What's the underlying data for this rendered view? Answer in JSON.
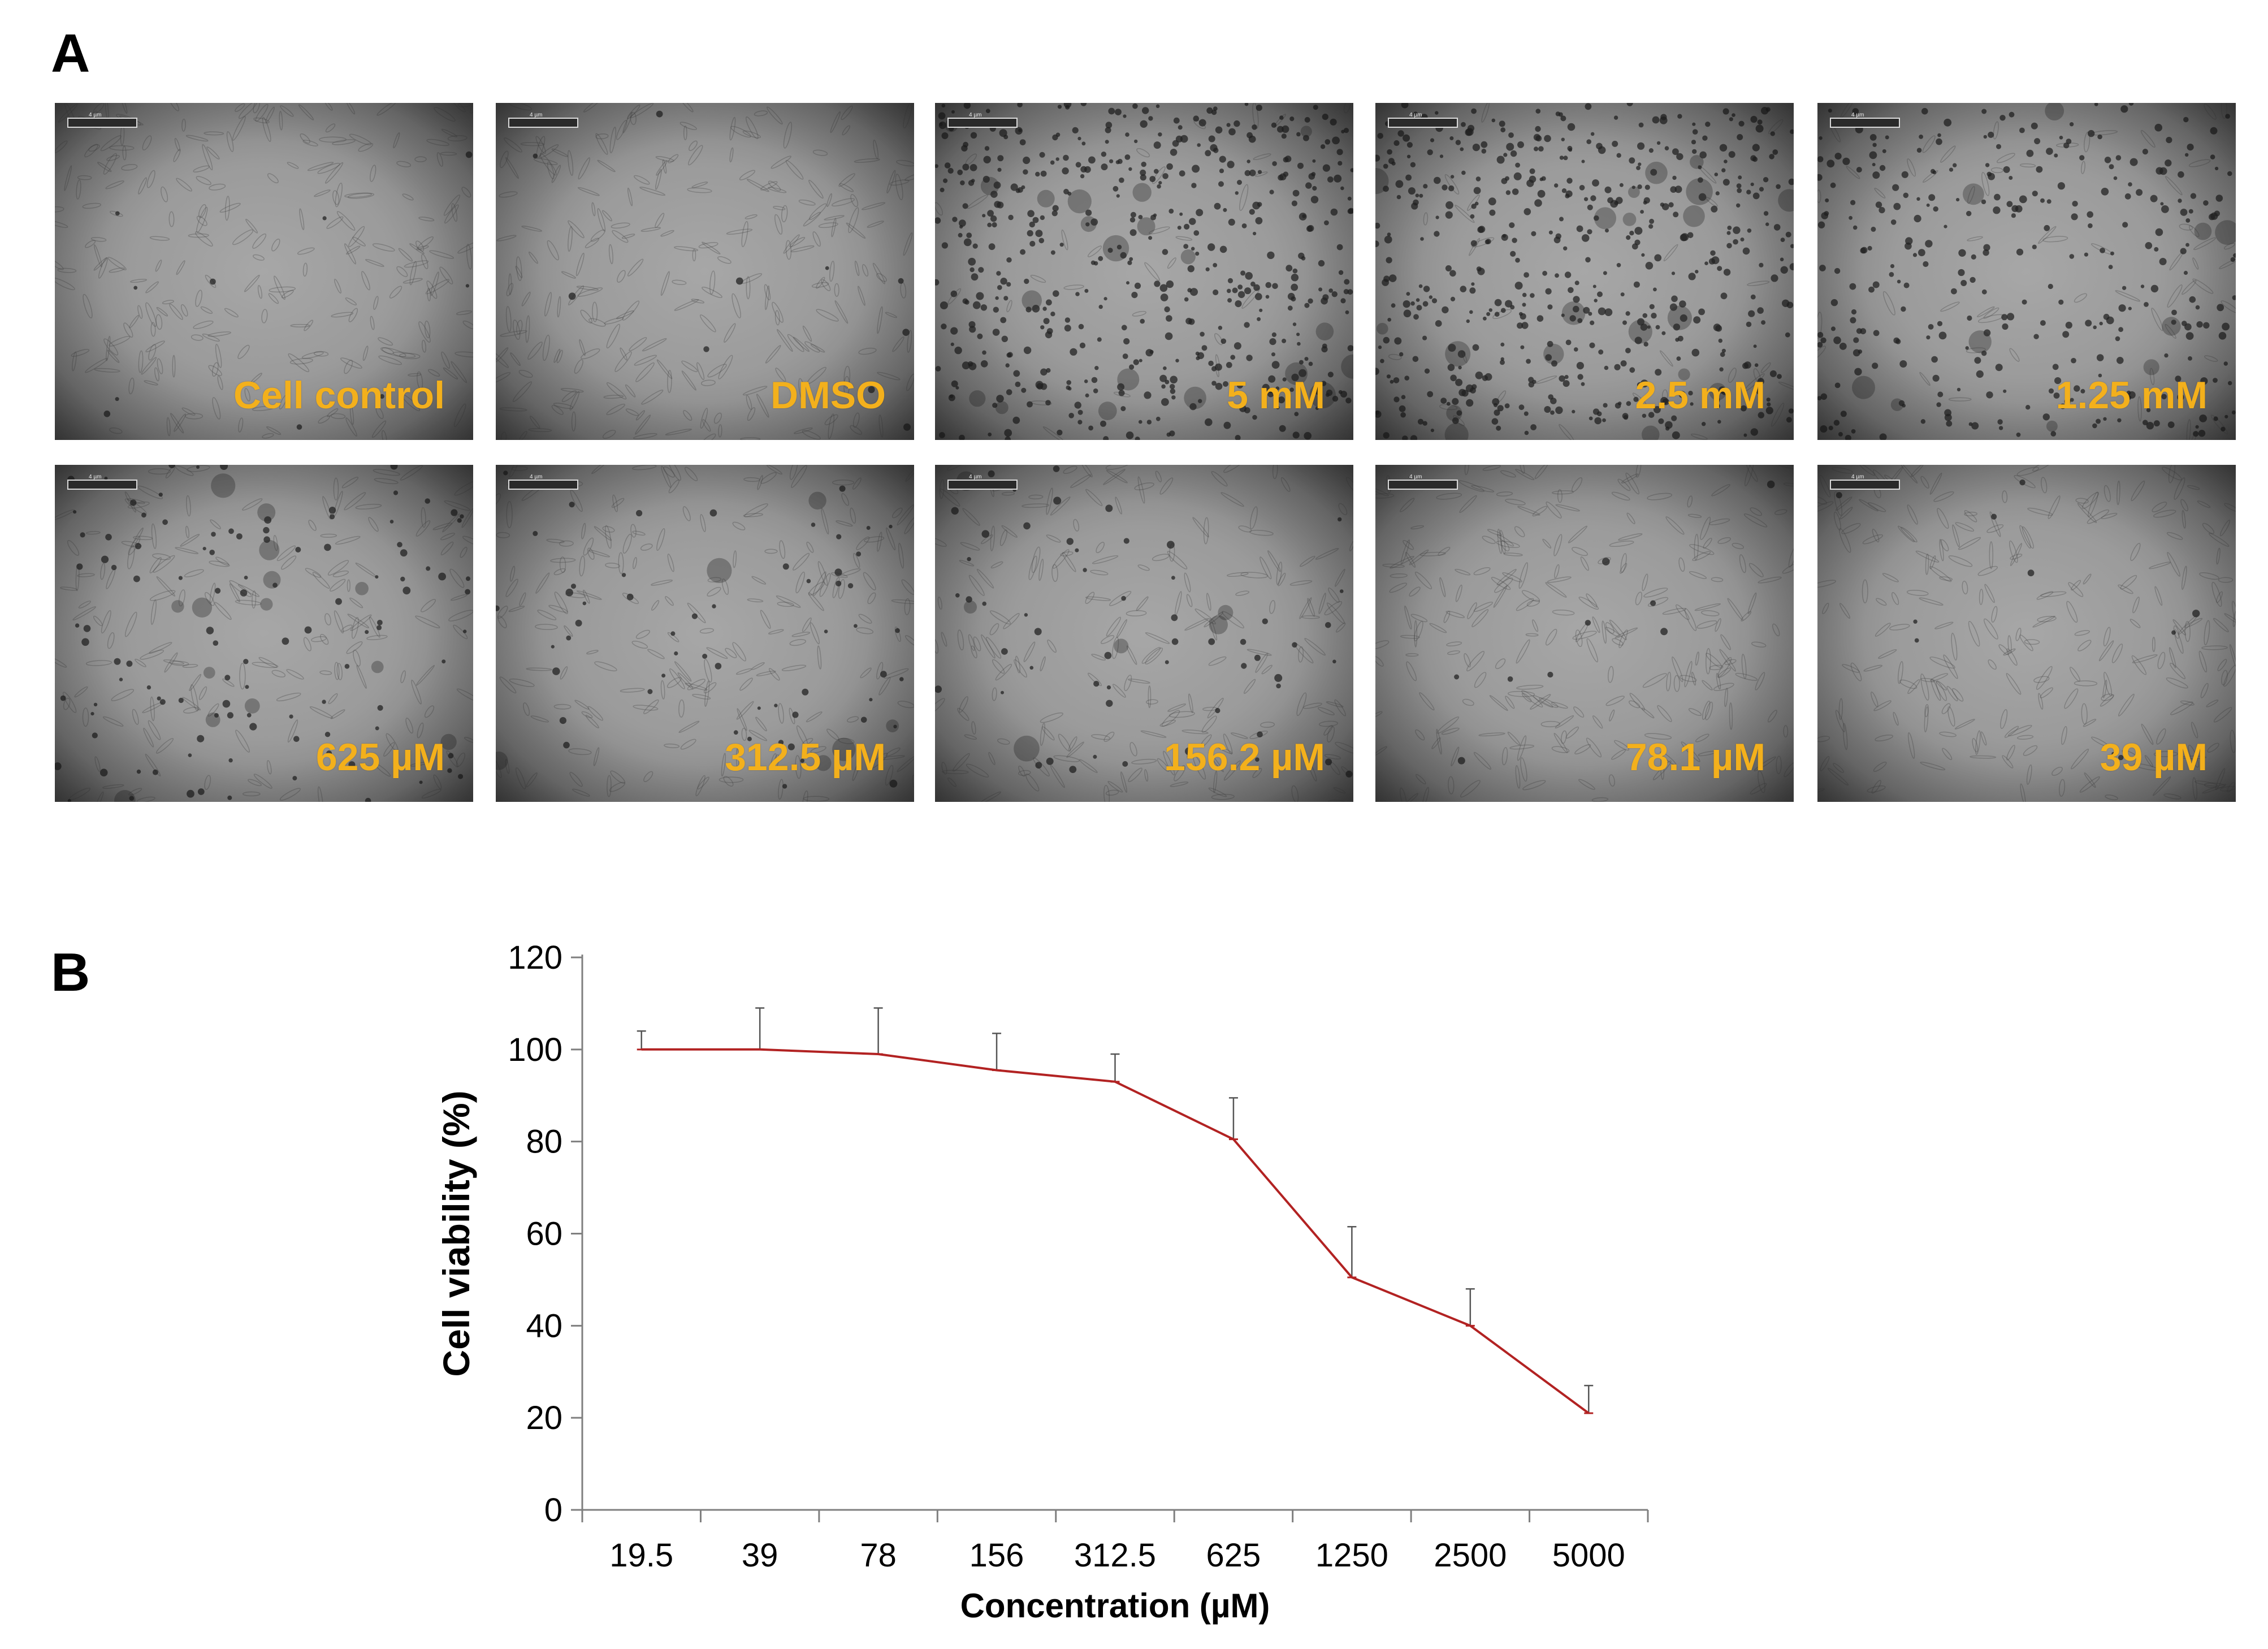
{
  "panels": {
    "a_label": "A",
    "b_label": "B"
  },
  "micrographs": [
    {
      "label": "Cell control",
      "scale_text": "4 µm",
      "density": "healthy"
    },
    {
      "label": "DMSO",
      "scale_text": "4 µm",
      "density": "healthy"
    },
    {
      "label": "5 mM",
      "scale_text": "4 µm",
      "density": "dead-heavy"
    },
    {
      "label": "2.5 mM",
      "scale_text": "4 µm",
      "density": "dead-heavy"
    },
    {
      "label": "1.25 mM",
      "scale_text": "4 µm",
      "density": "dead-medium"
    },
    {
      "label": "625 µM",
      "scale_text": "4 µm",
      "density": "mixed"
    },
    {
      "label": "312.5 µM",
      "scale_text": "4 µm",
      "density": "mostly-healthy"
    },
    {
      "label": "156.2 µM",
      "scale_text": "4 µm",
      "density": "mostly-healthy"
    },
    {
      "label": "78.1 µM",
      "scale_text": "4 µm",
      "density": "healthy"
    },
    {
      "label": "39 µM",
      "scale_text": "4 µm",
      "density": "healthy"
    }
  ],
  "chart_data": {
    "type": "line",
    "categories": [
      "19.5",
      "39",
      "78",
      "156",
      "312.5",
      "625",
      "1250",
      "2500",
      "5000"
    ],
    "series": [
      {
        "values": [
          100,
          100,
          99,
          95.5,
          93,
          80.5,
          50.5,
          40,
          21
        ],
        "errors": [
          4,
          9,
          10,
          8,
          6,
          9,
          11,
          8,
          6
        ]
      }
    ],
    "xlabel": "Concentration (µM)",
    "ylabel": "Cell viability (%)",
    "ylim": [
      0,
      120
    ],
    "yticks": [
      0,
      20,
      40,
      60,
      80,
      100,
      120
    ],
    "grid": false,
    "line_color": "#b22222",
    "error_color": "#555555"
  }
}
